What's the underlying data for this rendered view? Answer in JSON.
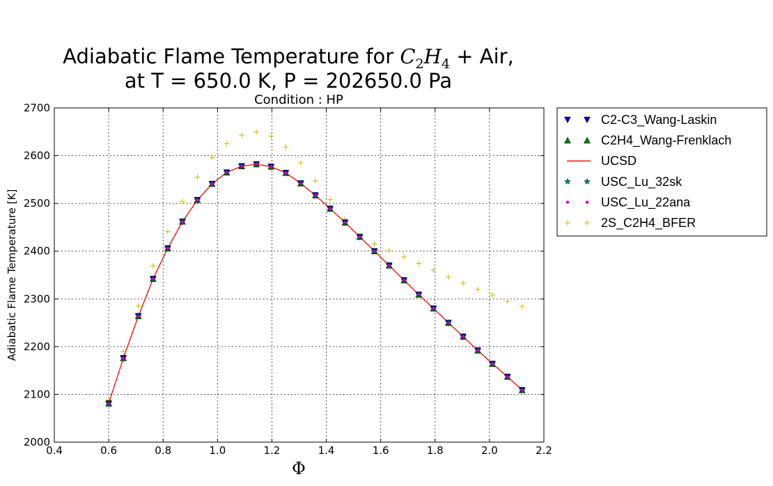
{
  "chart_data": {
    "type": "line",
    "title_line1": "Adiabatic Flame Temperature for C2H4 + Air,",
    "title_line2": "at T = 650.0 K, P = 202650.0 Pa",
    "subtitle": "Condition : HP",
    "xlabel": "Φ",
    "ylabel": "Adiabatic Flame Temperature [K]",
    "xlim": [
      0.4,
      2.2
    ],
    "ylim": [
      2000,
      2700
    ],
    "xticks": [
      "0.4",
      "0.6",
      "0.8",
      "1.0",
      "1.2",
      "1.4",
      "1.6",
      "1.8",
      "2.0",
      "2.2"
    ],
    "yticks": [
      "2000",
      "2100",
      "2200",
      "2300",
      "2400",
      "2500",
      "2600",
      "2700"
    ],
    "grid": true,
    "legend_position": "outside-right-top",
    "x": [
      0.6,
      0.654,
      0.709,
      0.763,
      0.817,
      0.871,
      0.926,
      0.98,
      1.034,
      1.089,
      1.143,
      1.197,
      1.251,
      1.306,
      1.36,
      1.414,
      1.469,
      1.523,
      1.577,
      1.631,
      1.686,
      1.74,
      1.794,
      1.849,
      1.903,
      1.957,
      2.011,
      2.066,
      2.12
    ],
    "series": [
      {
        "name": "C2-C3_Wang-Laskin",
        "marker": "triangle-down",
        "color": "#0000bf",
        "linestyle": "none",
        "values": [
          2081,
          2176,
          2264,
          2342,
          2406,
          2462,
          2507,
          2541,
          2565,
          2578,
          2582,
          2577,
          2564,
          2542,
          2517,
          2489,
          2460,
          2430,
          2400,
          2370,
          2339,
          2309,
          2280,
          2250,
          2221,
          2192,
          2164,
          2137,
          2109
        ]
      },
      {
        "name": "C2H4_Wang-Frenklach",
        "marker": "triangle-up",
        "color": "#007f00",
        "linestyle": "none",
        "values": [
          2081,
          2176,
          2264,
          2342,
          2406,
          2462,
          2507,
          2541,
          2565,
          2578,
          2582,
          2577,
          2564,
          2542,
          2517,
          2489,
          2460,
          2430,
          2400,
          2370,
          2339,
          2309,
          2280,
          2250,
          2221,
          2192,
          2164,
          2137,
          2109
        ]
      },
      {
        "name": "UCSD",
        "marker": "none",
        "color": "#ff0000",
        "linestyle": "solid",
        "values": [
          2081,
          2176,
          2264,
          2342,
          2406,
          2462,
          2507,
          2541,
          2565,
          2578,
          2582,
          2577,
          2564,
          2542,
          2517,
          2489,
          2460,
          2430,
          2400,
          2370,
          2339,
          2309,
          2280,
          2250,
          2221,
          2192,
          2164,
          2137,
          2109
        ]
      },
      {
        "name": "USC_Lu_32sk",
        "marker": "star",
        "color": "#007f7f",
        "linestyle": "none",
        "values": [
          2081,
          2176,
          2264,
          2342,
          2406,
          2462,
          2507,
          2541,
          2565,
          2578,
          2582,
          2577,
          2564,
          2542,
          2517,
          2489,
          2460,
          2430,
          2400,
          2370,
          2339,
          2309,
          2280,
          2250,
          2221,
          2192,
          2164,
          2137,
          2109
        ]
      },
      {
        "name": "USC_Lu_22ana",
        "marker": "point",
        "color": "#bf00bf",
        "linestyle": "none",
        "values": [
          2081,
          2176,
          2264,
          2342,
          2406,
          2462,
          2507,
          2541,
          2565,
          2578,
          2582,
          2577,
          2564,
          2542,
          2517,
          2489,
          2460,
          2430,
          2400,
          2370,
          2339,
          2309,
          2280,
          2250,
          2221,
          2192,
          2164,
          2137,
          2109
        ]
      },
      {
        "name": "2S_C2H4_BFER",
        "marker": "plus",
        "color": "#bfbf00",
        "linestyle": "none",
        "values": [
          2088,
          2190,
          2285,
          2369,
          2441,
          2504,
          2555,
          2596,
          2625,
          2643,
          2649,
          2641,
          2618,
          2585,
          2547,
          2508,
          2467,
          2432,
          2415,
          2401,
          2388,
          2374,
          2360,
          2346,
          2333,
          2320,
          2308,
          2295,
          2284
        ]
      }
    ]
  }
}
